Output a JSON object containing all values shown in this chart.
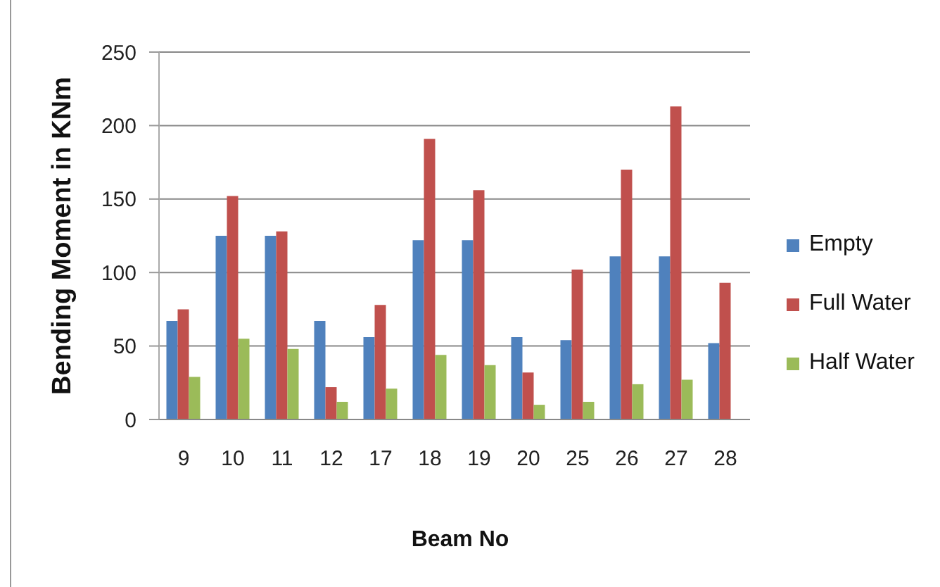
{
  "chart_data": {
    "type": "bar",
    "xlabel": "Beam No",
    "ylabel": "Bending Moment in KNm",
    "categories": [
      "9",
      "10",
      "11",
      "12",
      "17",
      "18",
      "19",
      "20",
      "25",
      "26",
      "27",
      "28"
    ],
    "series": [
      {
        "name": "Empty",
        "color": "#4f81bd",
        "values": [
          67,
          125,
          125,
          67,
          56,
          122,
          122,
          56,
          54,
          111,
          111,
          52
        ]
      },
      {
        "name": "Full Water",
        "color": "#c0504d",
        "values": [
          75,
          152,
          128,
          22,
          78,
          191,
          156,
          32,
          102,
          170,
          213,
          93
        ]
      },
      {
        "name": "Half Water",
        "color": "#9bbb59",
        "values": [
          29,
          55,
          48,
          12,
          21,
          44,
          37,
          10,
          12,
          24,
          27,
          null
        ]
      }
    ],
    "ylim": [
      0,
      250
    ],
    "yticks": [
      0,
      50,
      100,
      150,
      200,
      250
    ],
    "grid": "y",
    "legend": "right"
  }
}
